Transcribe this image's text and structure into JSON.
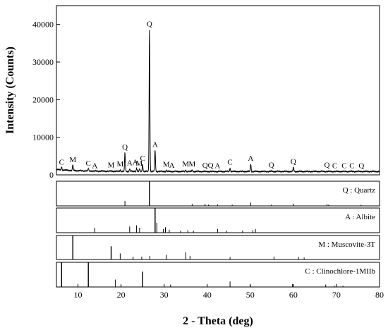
{
  "chart_data": {
    "type": "line",
    "xlabel": "2 - Theta (deg)",
    "ylabel": "Intensity (Counts)",
    "xlim": [
      5,
      80
    ],
    "ylim": [
      0,
      45000
    ],
    "x_ticks": [
      10,
      20,
      30,
      40,
      50,
      60,
      70,
      80
    ],
    "y_ticks": [
      0,
      10000,
      20000,
      30000,
      40000
    ],
    "series": [
      {
        "peaks": [
          {
            "x": 6.2,
            "y": 1800
          },
          {
            "x": 8.8,
            "y": 2400
          },
          {
            "x": 12.4,
            "y": 1500
          },
          {
            "x": 13.9,
            "y": 800
          },
          {
            "x": 17.7,
            "y": 1000
          },
          {
            "x": 19.8,
            "y": 1300
          },
          {
            "x": 20.9,
            "y": 5800
          },
          {
            "x": 22.0,
            "y": 1600
          },
          {
            "x": 23.6,
            "y": 1800
          },
          {
            "x": 24.3,
            "y": 1500
          },
          {
            "x": 25.0,
            "y": 2800
          },
          {
            "x": 26.6,
            "y": 38500
          },
          {
            "x": 27.9,
            "y": 6500
          },
          {
            "x": 30.5,
            "y": 1200
          },
          {
            "x": 31.5,
            "y": 900
          },
          {
            "x": 35.0,
            "y": 1300
          },
          {
            "x": 36.5,
            "y": 1300
          },
          {
            "x": 39.5,
            "y": 900
          },
          {
            "x": 40.3,
            "y": 900
          },
          {
            "x": 42.4,
            "y": 800
          },
          {
            "x": 45.3,
            "y": 1800
          },
          {
            "x": 50.1,
            "y": 2800
          },
          {
            "x": 54.9,
            "y": 1000
          },
          {
            "x": 60.0,
            "y": 2000
          },
          {
            "x": 67.8,
            "y": 1000
          },
          {
            "x": 68.2,
            "y": 900
          }
        ]
      }
    ],
    "peak_labels": [
      {
        "text": "C",
        "x": 6.2,
        "y": 1800
      },
      {
        "text": "M",
        "x": 8.8,
        "y": 2400
      },
      {
        "text": "C",
        "x": 12.4,
        "y": 1500
      },
      {
        "text": "A",
        "x": 13.9,
        "y": 800
      },
      {
        "text": "M",
        "x": 17.7,
        "y": 1000
      },
      {
        "text": "M",
        "x": 19.8,
        "y": 1300
      },
      {
        "text": "Q",
        "x": 20.9,
        "y": 5800
      },
      {
        "text": "A",
        "x": 22.0,
        "y": 1600
      },
      {
        "text": "A",
        "x": 23.3,
        "y": 1800
      },
      {
        "text": "C",
        "x": 25.0,
        "y": 2800
      },
      {
        "text": "M",
        "x": 24.2,
        "y": 1500
      },
      {
        "text": "Q",
        "x": 26.6,
        "y": 38500
      },
      {
        "text": "A",
        "x": 27.9,
        "y": 6500
      },
      {
        "text": "M",
        "x": 30.5,
        "y": 1200
      },
      {
        "text": "A",
        "x": 31.8,
        "y": 900
      },
      {
        "text": "M",
        "x": 35.0,
        "y": 1300
      },
      {
        "text": "M",
        "x": 36.5,
        "y": 1300
      },
      {
        "text": "Q",
        "x": 39.5,
        "y": 900
      },
      {
        "text": "Q",
        "x": 40.8,
        "y": 900
      },
      {
        "text": "A",
        "x": 42.4,
        "y": 800
      },
      {
        "text": "C",
        "x": 45.3,
        "y": 1800
      },
      {
        "text": "A",
        "x": 50.1,
        "y": 2800
      },
      {
        "text": "Q",
        "x": 54.9,
        "y": 1000
      },
      {
        "text": "Q",
        "x": 60.0,
        "y": 2000
      },
      {
        "text": "Q",
        "x": 67.8,
        "y": 1000
      },
      {
        "text": "C",
        "x": 69.6,
        "y": 800
      },
      {
        "text": "C",
        "x": 71.8,
        "y": 800
      },
      {
        "text": "C",
        "x": 73.6,
        "y": 800
      },
      {
        "text": "Q",
        "x": 75.8,
        "y": 800
      }
    ],
    "reference_patterns": [
      {
        "label": "Q : Quartz",
        "lines": [
          {
            "x": 20.9,
            "h": 0.2
          },
          {
            "x": 26.6,
            "h": 1.0
          },
          {
            "x": 36.5,
            "h": 0.08
          },
          {
            "x": 39.5,
            "h": 0.08
          },
          {
            "x": 40.3,
            "h": 0.05
          },
          {
            "x": 42.4,
            "h": 0.06
          },
          {
            "x": 45.8,
            "h": 0.05
          },
          {
            "x": 50.1,
            "h": 0.14
          },
          {
            "x": 54.9,
            "h": 0.05
          },
          {
            "x": 60.0,
            "h": 0.09
          },
          {
            "x": 67.8,
            "h": 0.07
          },
          {
            "x": 68.2,
            "h": 0.05
          },
          {
            "x": 75.7,
            "h": 0.04
          }
        ]
      },
      {
        "label": "A : Albite",
        "lines": [
          {
            "x": 13.9,
            "h": 0.2
          },
          {
            "x": 22.0,
            "h": 0.25
          },
          {
            "x": 23.6,
            "h": 0.3
          },
          {
            "x": 24.3,
            "h": 0.2
          },
          {
            "x": 27.9,
            "h": 1.0
          },
          {
            "x": 28.3,
            "h": 0.4
          },
          {
            "x": 29.8,
            "h": 0.15
          },
          {
            "x": 30.3,
            "h": 0.22
          },
          {
            "x": 31.2,
            "h": 0.12
          },
          {
            "x": 33.8,
            "h": 0.08
          },
          {
            "x": 35.5,
            "h": 0.1
          },
          {
            "x": 36.8,
            "h": 0.08
          },
          {
            "x": 42.4,
            "h": 0.15
          },
          {
            "x": 44.5,
            "h": 0.08
          },
          {
            "x": 48.2,
            "h": 0.08
          },
          {
            "x": 50.6,
            "h": 0.1
          },
          {
            "x": 51.2,
            "h": 0.14
          }
        ]
      },
      {
        "label": "M : Muscovite-3T",
        "lines": [
          {
            "x": 8.8,
            "h": 1.0
          },
          {
            "x": 17.7,
            "h": 0.55
          },
          {
            "x": 19.8,
            "h": 0.25
          },
          {
            "x": 22.8,
            "h": 0.12
          },
          {
            "x": 24.8,
            "h": 0.12
          },
          {
            "x": 26.7,
            "h": 0.15
          },
          {
            "x": 30.5,
            "h": 0.2
          },
          {
            "x": 35.0,
            "h": 0.3
          },
          {
            "x": 36.0,
            "h": 0.15
          },
          {
            "x": 45.3,
            "h": 0.1
          },
          {
            "x": 55.5,
            "h": 0.12
          },
          {
            "x": 61.2,
            "h": 0.1
          },
          {
            "x": 62.5,
            "h": 0.08
          }
        ]
      },
      {
        "label": "C : Clinochlore-1MIIb",
        "lines": [
          {
            "x": 6.2,
            "h": 1.0
          },
          {
            "x": 12.4,
            "h": 1.0
          },
          {
            "x": 18.7,
            "h": 0.3
          },
          {
            "x": 25.0,
            "h": 0.62
          },
          {
            "x": 31.5,
            "h": 0.1
          },
          {
            "x": 45.3,
            "h": 0.22
          },
          {
            "x": 50.0,
            "h": 0.1
          },
          {
            "x": 59.8,
            "h": 0.12
          },
          {
            "x": 67.5,
            "h": 0.1
          },
          {
            "x": 69.5,
            "h": 0.05
          },
          {
            "x": 71.5,
            "h": 0.05
          }
        ]
      }
    ]
  }
}
